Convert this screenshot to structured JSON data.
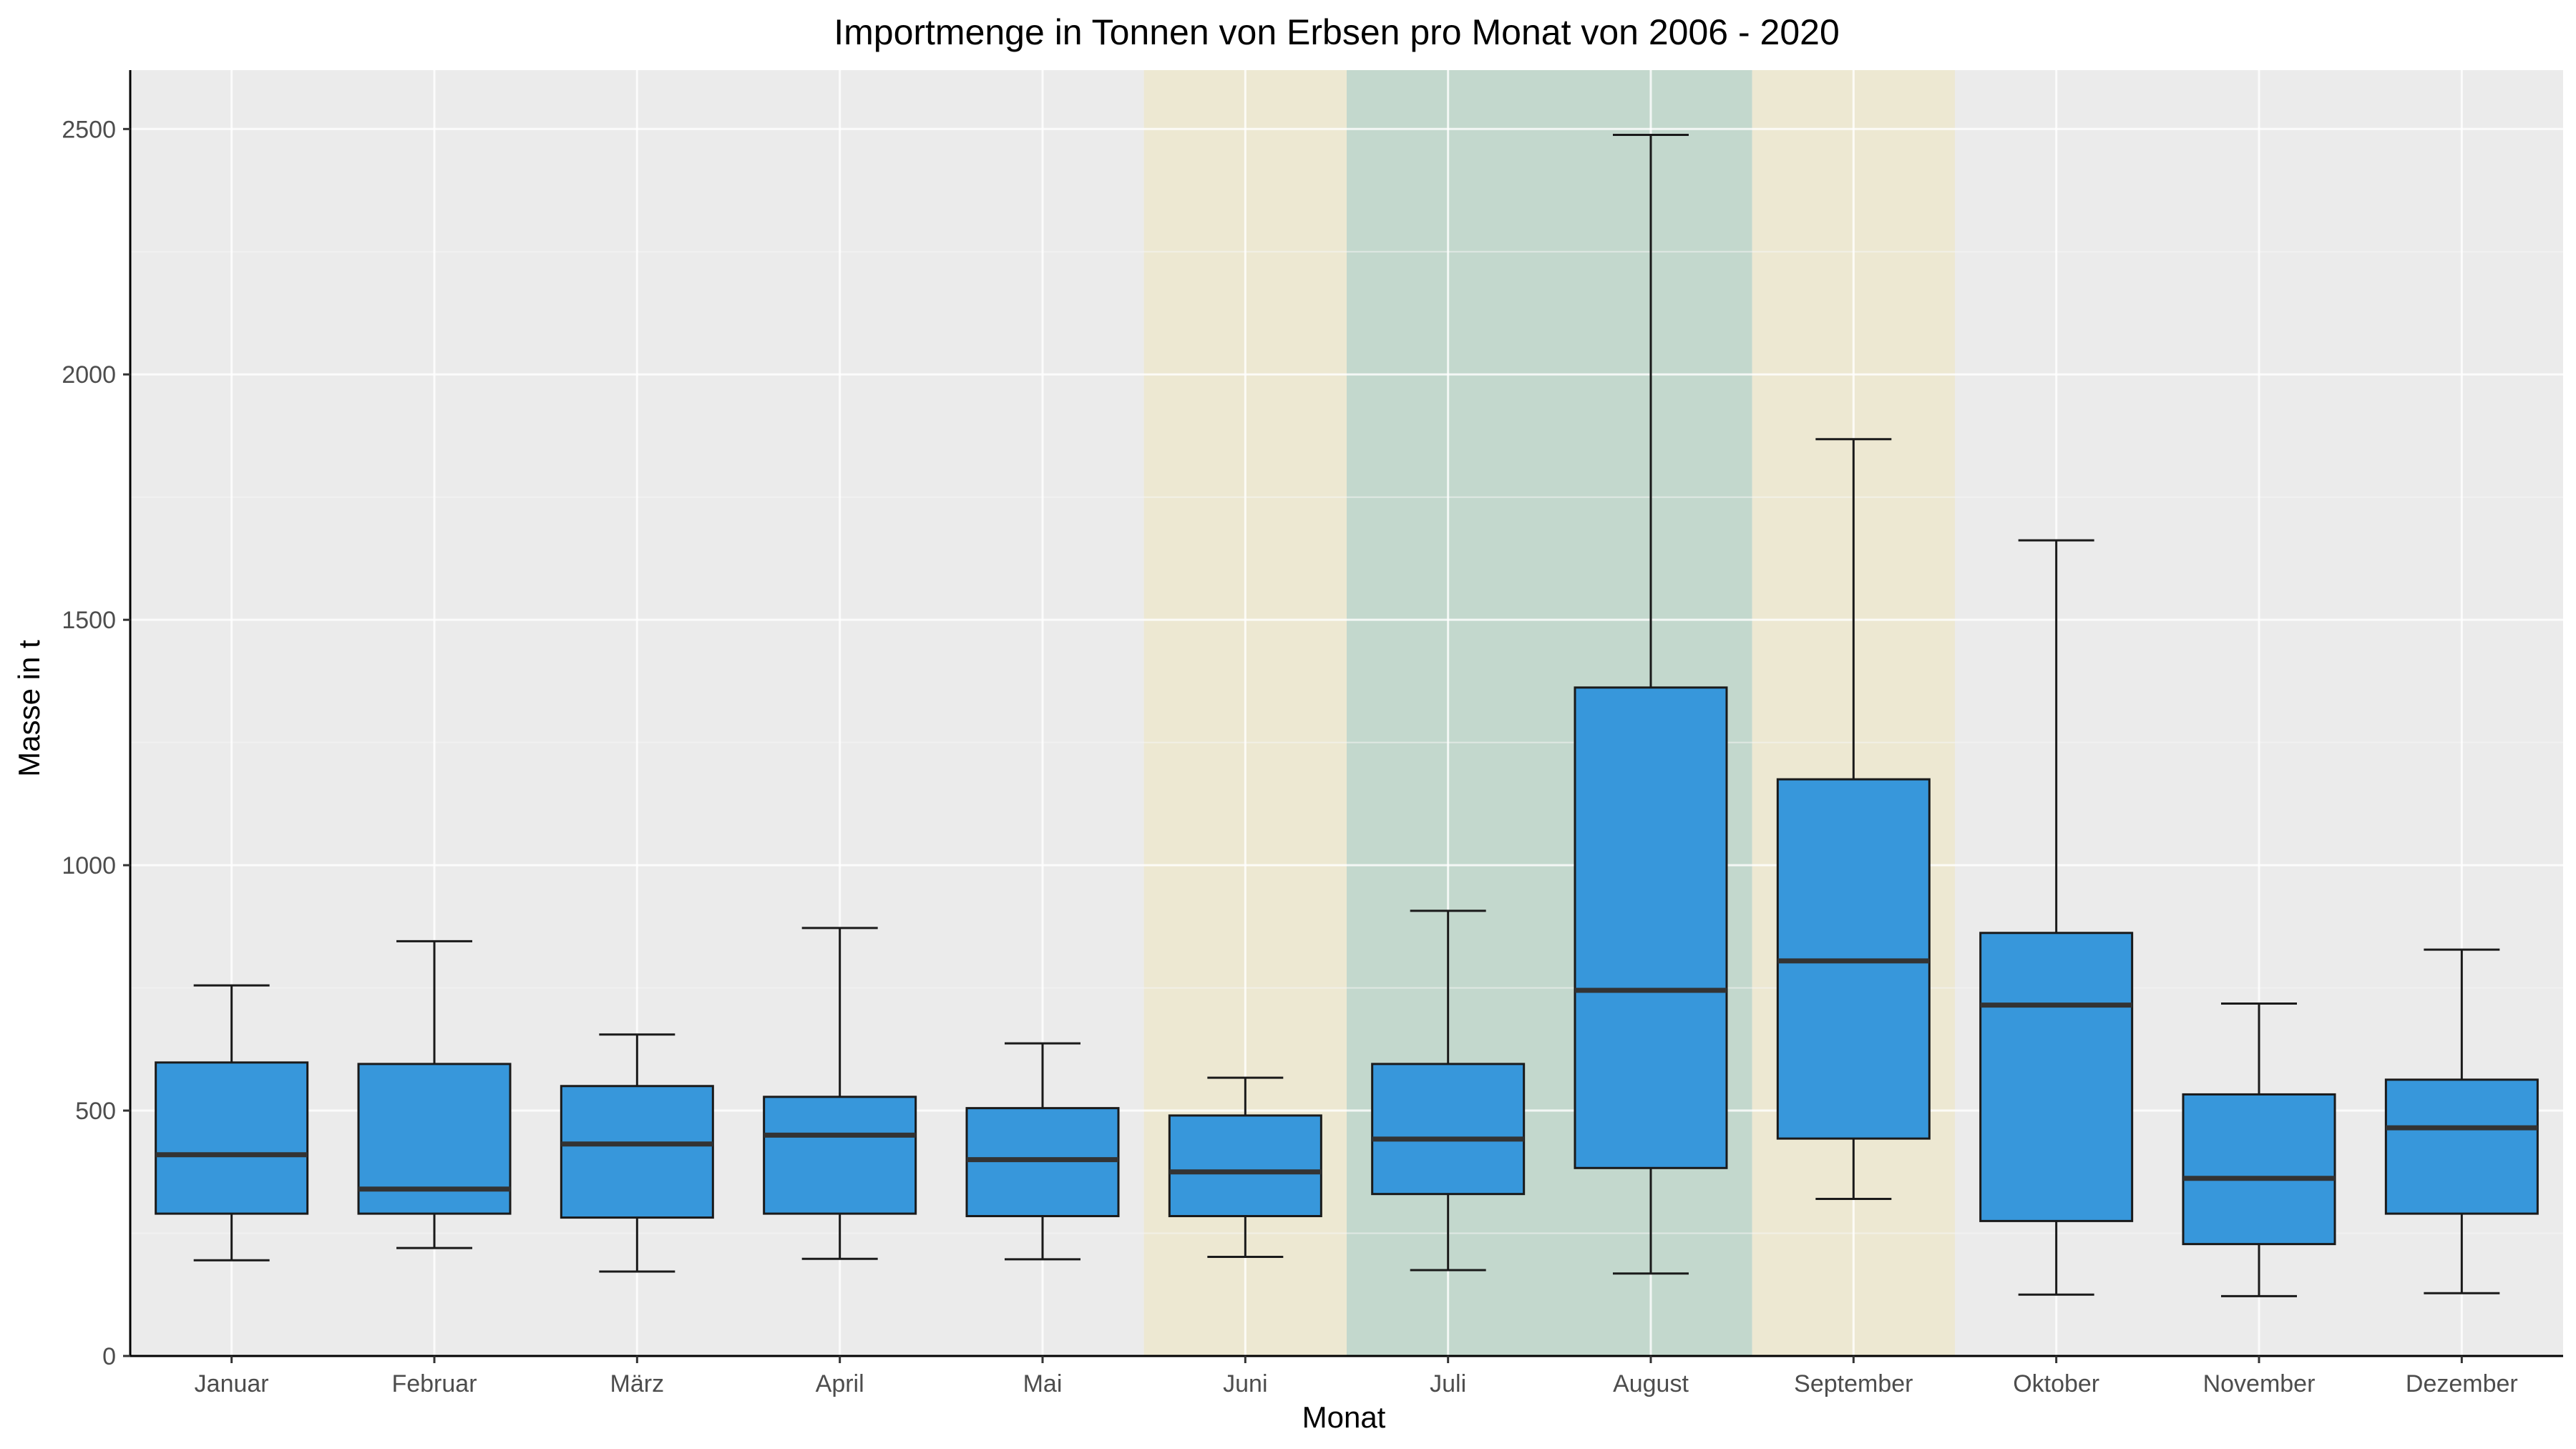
{
  "chart_data": {
    "type": "boxplot",
    "title": "Importmenge in Tonnen von Erbsen pro Monat von 2006 - 2020",
    "xlabel": "Monat",
    "ylabel": "Masse in t",
    "ylim": [
      0,
      2620
    ],
    "yticks": [
      0,
      500,
      1000,
      1500,
      2000,
      2500
    ],
    "grid": true,
    "legend": "none",
    "categories": [
      "Januar",
      "Februar",
      "März",
      "April",
      "Mai",
      "Juni",
      "Juli",
      "August",
      "September",
      "Oktober",
      "November",
      "Dezember"
    ],
    "boxes": [
      {
        "category": "Januar",
        "whisker_low": 195,
        "q1": 290,
        "median": 410,
        "q3": 598,
        "whisker_high": 755
      },
      {
        "category": "Februar",
        "whisker_low": 220,
        "q1": 290,
        "median": 340,
        "q3": 595,
        "whisker_high": 845
      },
      {
        "category": "März",
        "whisker_low": 172,
        "q1": 282,
        "median": 432,
        "q3": 550,
        "whisker_high": 655
      },
      {
        "category": "April",
        "whisker_low": 198,
        "q1": 290,
        "median": 450,
        "q3": 528,
        "whisker_high": 872
      },
      {
        "category": "Mai",
        "whisker_low": 197,
        "q1": 285,
        "median": 400,
        "q3": 505,
        "whisker_high": 637
      },
      {
        "category": "Juni",
        "whisker_low": 202,
        "q1": 285,
        "median": 375,
        "q3": 490,
        "whisker_high": 567
      },
      {
        "category": "Juli",
        "whisker_low": 175,
        "q1": 330,
        "median": 442,
        "q3": 595,
        "whisker_high": 907
      },
      {
        "category": "August",
        "whisker_low": 168,
        "q1": 383,
        "median": 745,
        "q3": 1362,
        "whisker_high": 2488
      },
      {
        "category": "September",
        "whisker_low": 320,
        "q1": 443,
        "median": 805,
        "q3": 1175,
        "whisker_high": 1868
      },
      {
        "category": "Oktober",
        "whisker_low": 125,
        "q1": 275,
        "median": 715,
        "q3": 862,
        "whisker_high": 1662
      },
      {
        "category": "November",
        "whisker_low": 122,
        "q1": 228,
        "median": 362,
        "q3": 533,
        "whisker_high": 718
      },
      {
        "category": "Dezember",
        "whisker_low": 128,
        "q1": 290,
        "median": 465,
        "q3": 563,
        "whisker_high": 828
      }
    ],
    "highlight_bands": [
      {
        "from": "Juni",
        "to": "Juni",
        "color": "#ede8d2"
      },
      {
        "from": "Juli",
        "to": "August",
        "color": "#c3d8cd"
      },
      {
        "from": "September",
        "to": "September",
        "color": "#ede8d2"
      }
    ],
    "colors": {
      "box_fill": "#3797db",
      "box_stroke": "#1a1a1a",
      "median": "#333333",
      "panel_background": "#ebebeb",
      "grid_major": "#ffffff",
      "grid_minor": "#f5f5f5"
    }
  }
}
